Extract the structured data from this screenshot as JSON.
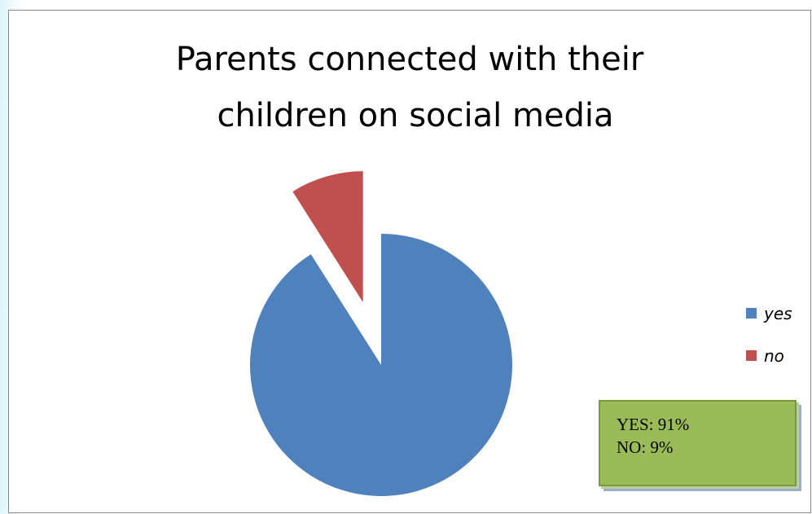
{
  "chart_data": {
    "type": "pie",
    "title": "Parents connected with their children on social media",
    "title_lines": [
      "Parents connected with their",
      "children on social media"
    ],
    "categories": [
      "yes",
      "no"
    ],
    "values": [
      91,
      9
    ],
    "colors": [
      "#4f81bd",
      "#c0504d"
    ],
    "exploded": [
      "no"
    ],
    "legend": {
      "placement": "right",
      "entries": [
        "yes",
        "no"
      ]
    }
  },
  "annotation": {
    "lines": [
      "YES: 91%",
      "NO: 9%"
    ]
  }
}
